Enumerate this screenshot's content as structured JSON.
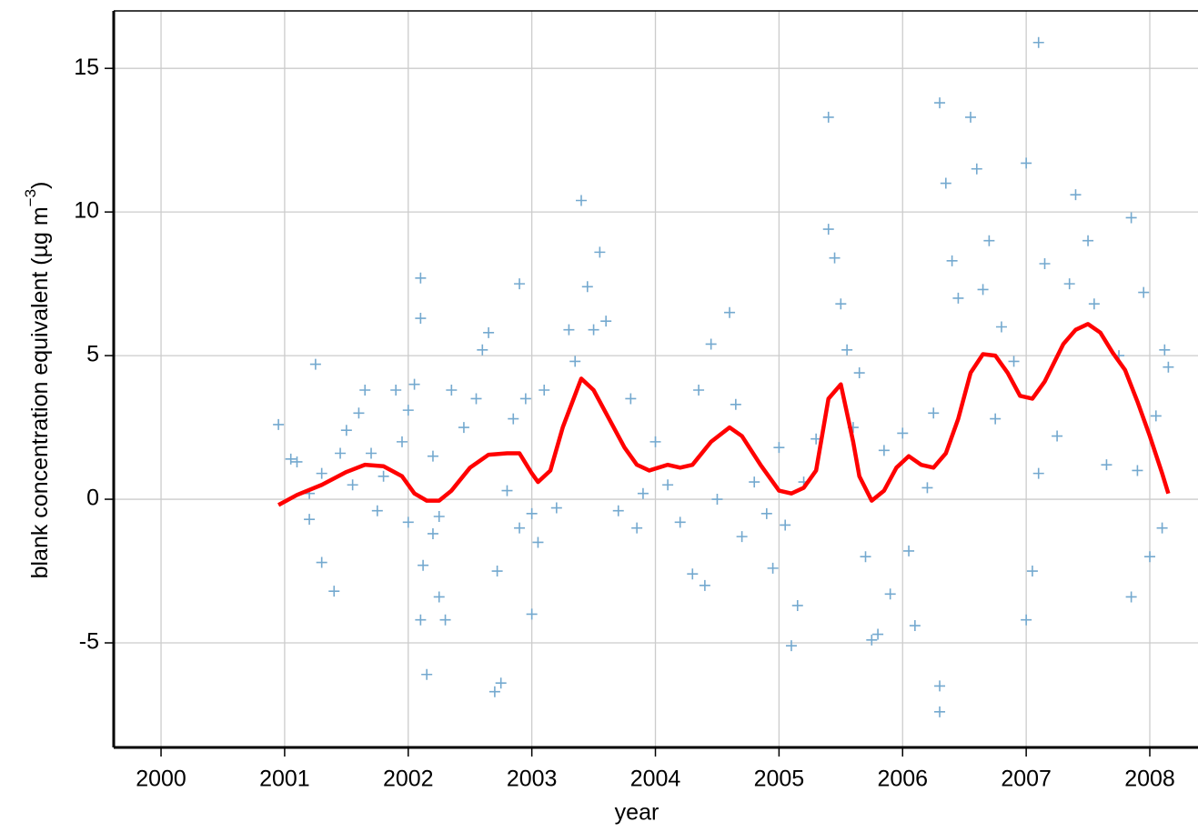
{
  "chart_data": {
    "type": "scatter",
    "xlabel": "year",
    "ylabel": [
      "blank concentration equivalent (µg m",
      "−3",
      ")"
    ],
    "xlim": [
      1999.617,
      2008.39
    ],
    "ylim": [
      -8.64,
      17
    ],
    "xticks": [
      2000,
      2001,
      2002,
      2003,
      2004,
      2005,
      2006,
      2007,
      2008
    ],
    "yticks": [
      -5,
      0,
      5,
      10,
      15
    ],
    "grid": true,
    "series": [
      {
        "type": "scatter",
        "color": "#74a9cf",
        "x": [
          2000.95,
          2001.05,
          2001.1,
          2001.2,
          2001.2,
          2001.25,
          2001.3,
          2001.3,
          2001.4,
          2001.45,
          2001.5,
          2001.55,
          2001.6,
          2001.65,
          2001.7,
          2001.75,
          2001.8,
          2001.9,
          2001.95,
          2002.0,
          2002.0,
          2002.05,
          2002.1,
          2002.1,
          2002.1,
          2002.12,
          2002.15,
          2002.2,
          2002.2,
          2002.25,
          2002.25,
          2002.3,
          2002.35,
          2002.45,
          2002.55,
          2002.6,
          2002.65,
          2002.7,
          2002.72,
          2002.75,
          2002.8,
          2002.85,
          2002.9,
          2002.9,
          2002.95,
          2003.0,
          2003.0,
          2003.05,
          2003.1,
          2003.2,
          2003.3,
          2003.35,
          2003.4,
          2003.45,
          2003.5,
          2003.55,
          2003.6,
          2003.7,
          2003.8,
          2003.85,
          2003.9,
          2004.0,
          2004.1,
          2004.2,
          2004.3,
          2004.35,
          2004.4,
          2004.45,
          2004.5,
          2004.6,
          2004.65,
          2004.7,
          2004.8,
          2004.9,
          2004.95,
          2005.0,
          2005.05,
          2005.1,
          2005.15,
          2005.2,
          2005.3,
          2005.4,
          2005.4,
          2005.45,
          2005.5,
          2005.55,
          2005.6,
          2005.65,
          2005.7,
          2005.75,
          2005.8,
          2005.85,
          2005.9,
          2006.0,
          2006.05,
          2006.1,
          2006.2,
          2006.25,
          2006.3,
          2006.3,
          2006.3,
          2006.35,
          2006.4,
          2006.45,
          2006.55,
          2006.6,
          2006.65,
          2006.7,
          2006.75,
          2006.8,
          2006.9,
          2007.0,
          2007.0,
          2007.05,
          2007.1,
          2007.1,
          2007.15,
          2007.25,
          2007.35,
          2007.4,
          2007.5,
          2007.55,
          2007.65,
          2007.75,
          2007.85,
          2007.85,
          2007.9,
          2007.95,
          2008.0,
          2008.05,
          2008.1,
          2008.12,
          2008.15
        ],
        "y": [
          2.6,
          1.4,
          1.3,
          0.2,
          -0.7,
          4.7,
          -2.2,
          0.9,
          -3.2,
          1.6,
          2.4,
          0.5,
          3.0,
          3.8,
          1.6,
          -0.4,
          0.8,
          3.8,
          2.0,
          -0.8,
          3.1,
          4.0,
          7.7,
          6.3,
          -4.2,
          -2.3,
          -6.1,
          -1.2,
          1.5,
          -3.4,
          -0.6,
          -4.2,
          3.8,
          2.5,
          3.5,
          5.2,
          5.8,
          -6.7,
          -2.5,
          -6.4,
          0.3,
          2.8,
          7.5,
          -1.0,
          3.5,
          -0.5,
          -4.0,
          -1.5,
          3.8,
          -0.3,
          5.9,
          4.8,
          10.4,
          7.4,
          5.9,
          8.6,
          6.2,
          -0.4,
          3.5,
          -1.0,
          0.2,
          2.0,
          0.5,
          -0.8,
          -2.6,
          3.8,
          -3.0,
          5.4,
          0.0,
          6.5,
          3.3,
          -1.3,
          0.6,
          -0.5,
          -2.4,
          1.8,
          -0.9,
          -5.1,
          -3.7,
          0.6,
          2.1,
          13.3,
          9.4,
          8.4,
          6.8,
          5.2,
          2.5,
          4.4,
          -2.0,
          -4.9,
          -4.7,
          1.7,
          -3.3,
          2.3,
          -1.8,
          -4.4,
          0.4,
          3.0,
          13.8,
          -7.4,
          -6.5,
          11.0,
          8.3,
          7.0,
          13.3,
          11.5,
          7.3,
          9.0,
          2.8,
          6.0,
          4.8,
          11.7,
          -4.2,
          -2.5,
          15.9,
          0.9,
          8.2,
          2.2,
          7.5,
          10.6,
          9.0,
          6.8,
          1.2,
          5.0,
          9.8,
          -3.4,
          1.0,
          7.2,
          -2.0,
          2.9,
          -1.0,
          5.2,
          4.6
        ]
      },
      {
        "type": "line",
        "color": "#ff0000",
        "x": [
          2000.95,
          2001.1,
          2001.3,
          2001.5,
          2001.65,
          2001.8,
          2001.95,
          2002.05,
          2002.15,
          2002.25,
          2002.35,
          2002.5,
          2002.65,
          2002.8,
          2002.9,
          2003.0,
          2003.05,
          2003.15,
          2003.25,
          2003.4,
          2003.5,
          2003.6,
          2003.75,
          2003.85,
          2003.95,
          2004.1,
          2004.2,
          2004.3,
          2004.45,
          2004.6,
          2004.7,
          2004.85,
          2005.0,
          2005.1,
          2005.2,
          2005.3,
          2005.4,
          2005.5,
          2005.6,
          2005.65,
          2005.75,
          2005.85,
          2005.95,
          2006.05,
          2006.15,
          2006.25,
          2006.35,
          2006.45,
          2006.55,
          2006.65,
          2006.75,
          2006.85,
          2006.95,
          2007.05,
          2007.15,
          2007.3,
          2007.4,
          2007.5,
          2007.6,
          2007.7,
          2007.8,
          2007.9,
          2008.0,
          2008.1,
          2008.15
        ],
        "y": [
          -0.2,
          0.15,
          0.5,
          0.95,
          1.2,
          1.15,
          0.8,
          0.2,
          -0.05,
          -0.05,
          0.3,
          1.1,
          1.55,
          1.6,
          1.6,
          0.9,
          0.6,
          1.0,
          2.5,
          4.2,
          3.8,
          3.0,
          1.8,
          1.2,
          1.0,
          1.2,
          1.1,
          1.2,
          2.0,
          2.5,
          2.2,
          1.2,
          0.3,
          0.2,
          0.4,
          1.0,
          3.5,
          4.0,
          2.0,
          0.8,
          -0.05,
          0.3,
          1.1,
          1.5,
          1.2,
          1.1,
          1.6,
          2.8,
          4.4,
          5.05,
          5.0,
          4.4,
          3.6,
          3.5,
          4.1,
          5.4,
          5.9,
          6.1,
          5.8,
          5.1,
          4.5,
          3.4,
          2.2,
          0.9,
          0.2
        ]
      }
    ]
  }
}
